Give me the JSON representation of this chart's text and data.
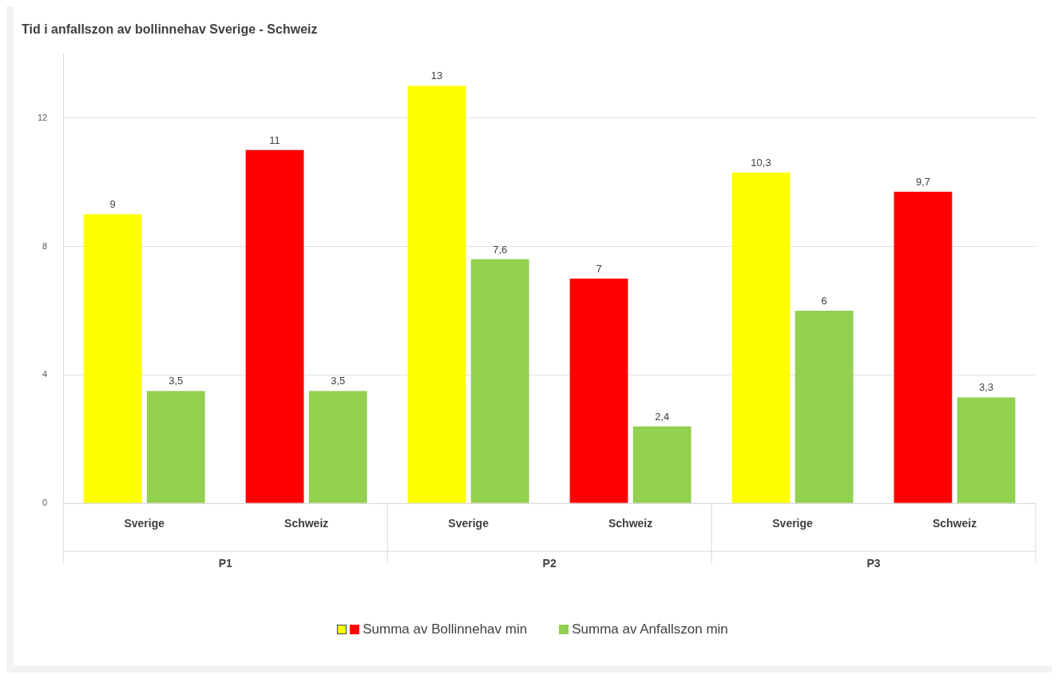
{
  "chart_data": {
    "type": "bar",
    "title": "Tid i anfallszon av bollinnehav Sverige - Schweiz",
    "categories": [
      "Sverige",
      "Schweiz",
      "Sverige",
      "Schweiz",
      "Sverige",
      "Schweiz"
    ],
    "series": [
      {
        "name": "Summa av Bollinnehav min",
        "colors": [
          "#ffff00",
          "#ff0000",
          "#ffff00",
          "#ff0000",
          "#ffff00",
          "#ff0000"
        ],
        "values": [
          9,
          11,
          13,
          7,
          10.3,
          9.7
        ],
        "value_labels": [
          "9",
          "11",
          "13",
          "7",
          "10,3",
          "9,7"
        ]
      },
      {
        "name": "Summa av Anfallszon min",
        "color": "#92d050",
        "values": [
          3.5,
          3.5,
          7.6,
          2.4,
          6,
          3.3
        ],
        "value_labels": [
          "3,5",
          "3,5",
          "7,6",
          "2,4",
          "6",
          "3,3"
        ]
      }
    ],
    "annotations": [
      "P1",
      "P2",
      "P3"
    ],
    "ylim": [
      0,
      14
    ],
    "yticks": [
      0,
      4,
      8,
      12
    ],
    "grid": "y",
    "legend": "bottom"
  }
}
